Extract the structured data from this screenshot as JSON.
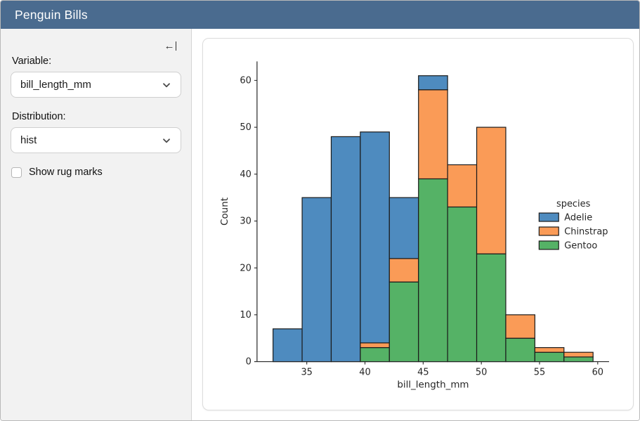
{
  "header": {
    "title": "Penguin Bills"
  },
  "sidebar": {
    "variable_label": "Variable:",
    "variable_value": "bill_length_mm",
    "distribution_label": "Distribution:",
    "distribution_value": "hist",
    "rug_label": "Show rug marks",
    "rug_checked": false,
    "icons": {
      "collapse": "arrow-left-to-bar",
      "select_chevron": "chevron-down"
    }
  },
  "chart_data": {
    "type": "bar",
    "subtype": "stacked-histogram",
    "bin_edges": [
      32.1,
      34.6,
      37.1,
      39.6,
      42.1,
      44.6,
      47.1,
      49.6,
      52.1,
      54.6,
      57.1,
      59.6
    ],
    "series": [
      {
        "name": "Adelie",
        "color": "#4e8bbf",
        "values": [
          7,
          35,
          48,
          45,
          13,
          3,
          0,
          0,
          0,
          0,
          0
        ]
      },
      {
        "name": "Chinstrap",
        "color": "#fa9b57",
        "values": [
          0,
          0,
          0,
          1,
          5,
          19,
          9,
          27,
          5,
          1,
          1
        ]
      },
      {
        "name": "Gentoo",
        "color": "#55b266",
        "values": [
          0,
          0,
          0,
          3,
          17,
          39,
          33,
          23,
          5,
          2,
          1
        ]
      }
    ],
    "stack_order_bottom_to_top": [
      "Gentoo",
      "Chinstrap",
      "Adelie"
    ],
    "stacked_bin_totals": [
      7,
      35,
      48,
      49,
      35,
      61,
      42,
      50,
      10,
      3,
      2
    ],
    "xlabel": "bill_length_mm",
    "ylabel": "Count",
    "xticks": [
      35,
      40,
      45,
      50,
      55,
      60
    ],
    "yticks": [
      0,
      10,
      20,
      30,
      40,
      50,
      60
    ],
    "xlim": [
      30.725,
      60.975
    ],
    "ylim": [
      0,
      64.05
    ],
    "edge_color": "#1a1a1a",
    "axis_color": "#262626",
    "grid": false,
    "legend": {
      "title": "species",
      "entries": [
        "Adelie",
        "Chinstrap",
        "Gentoo"
      ],
      "position": "center-right"
    }
  }
}
